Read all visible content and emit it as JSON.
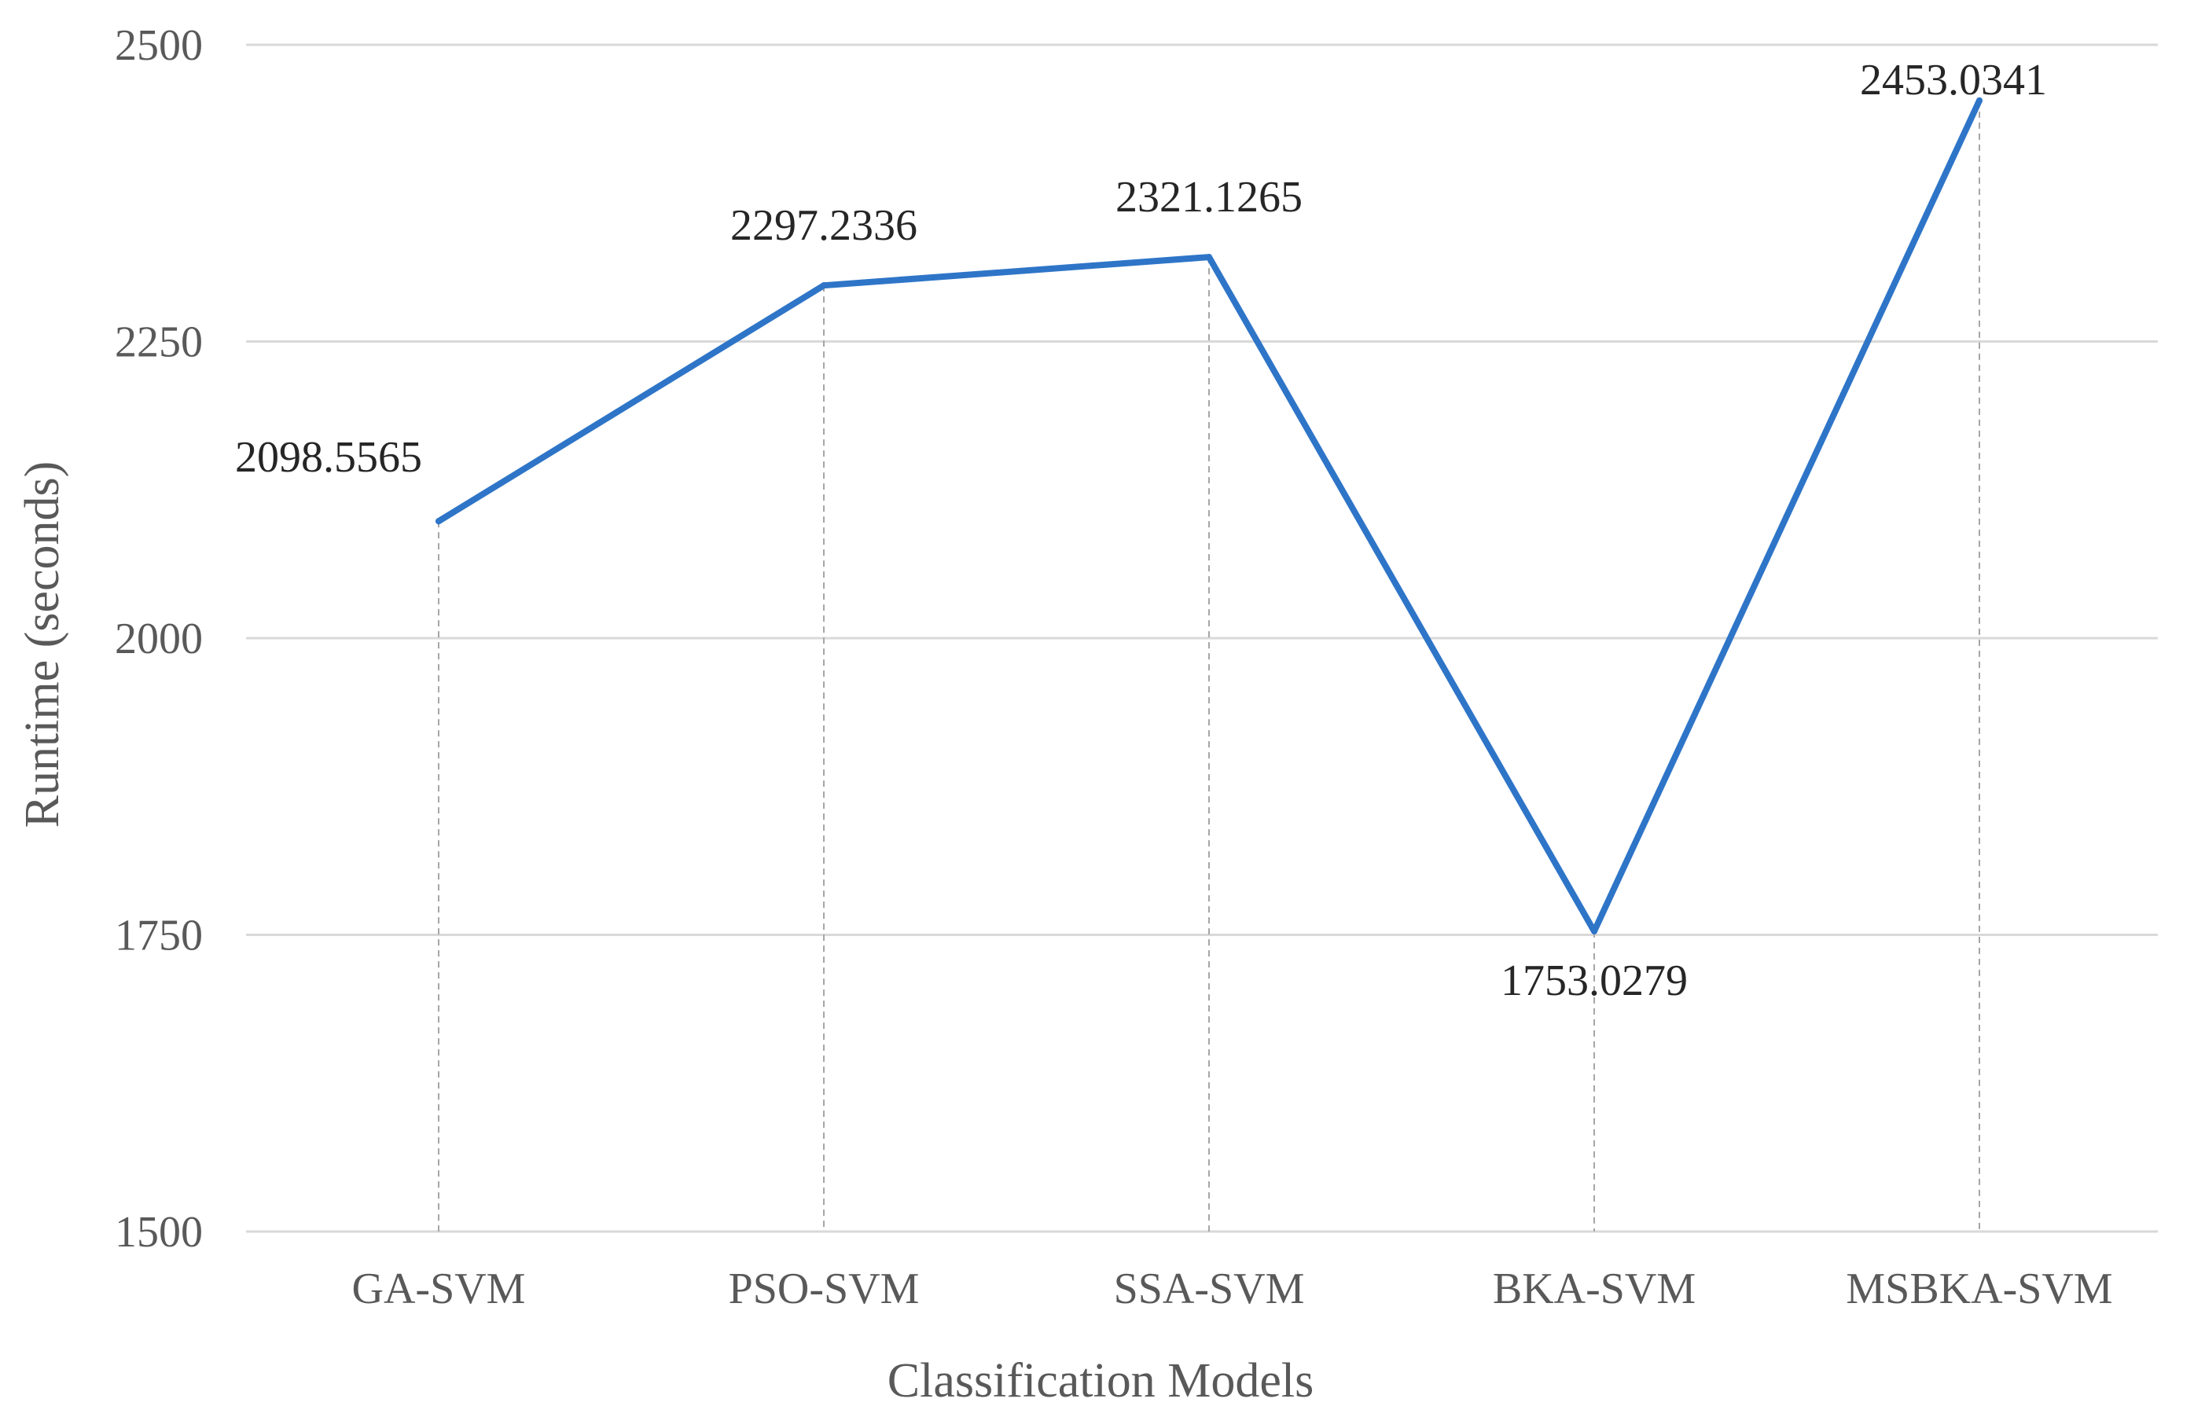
{
  "chart_data": {
    "type": "line",
    "categories": [
      "GA-SVM",
      "PSO-SVM",
      "SSA-SVM",
      "BKA-SVM",
      "MSBKA-SVM"
    ],
    "series": [
      {
        "values": [
          2098.5565,
          2297.2336,
          2321.1265,
          1753.0279,
          2453.0341
        ],
        "labels": [
          "2098.5565",
          "2297.2336",
          "2321.1265",
          "1753.0279",
          "2453.0341"
        ]
      }
    ],
    "xlabel": "Classification Models",
    "ylabel": "Runtime (seconds)",
    "ylim": [
      1500,
      2500
    ],
    "yticks": [
      "1500",
      "1750",
      "2000",
      "2250",
      "2500"
    ],
    "grid": true,
    "drop_lines": true,
    "colors": {
      "line": "#2E75C8",
      "grid": "#D9D9D9",
      "drop_line": "#A6A6A6",
      "tick_text": "#595959",
      "label_text": "#262626"
    }
  }
}
